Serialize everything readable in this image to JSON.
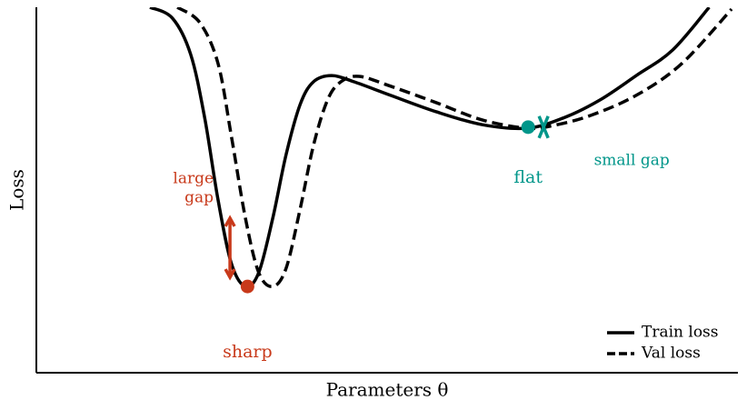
{
  "chart_data": {
    "type": "line",
    "xlabel": "Parameters θ",
    "ylabel": "Loss",
    "xlim": [
      0,
      100
    ],
    "ylim": [
      0,
      100
    ],
    "legend": "lower right",
    "series": [
      {
        "name": "Train loss",
        "color": "#000000",
        "dashed": false,
        "x": [
          16.2,
          19.4,
          22.0,
          24.0,
          25.9,
          27.8,
          29.8,
          31.7,
          33.7,
          35.6,
          37.6,
          39.5,
          42.1,
          45.3,
          50.5,
          57.0,
          63.5,
          69.9,
          75.1,
          80.3,
          85.5,
          90.7,
          95.9
        ],
        "values": [
          100,
          97.0,
          87.1,
          69.7,
          47.3,
          29.9,
          23.6,
          27.4,
          42.3,
          59.7,
          73.4,
          79.6,
          81.3,
          79.6,
          75.9,
          71.4,
          67.9,
          66.9,
          69.7,
          74.6,
          81.3,
          88.3,
          100
        ]
      },
      {
        "name": "Val loss",
        "color": "#000000",
        "dashed": true,
        "x": [
          20.1,
          23.3,
          25.9,
          27.8,
          29.8,
          31.7,
          33.7,
          35.6,
          37.6,
          39.5,
          41.5,
          43.4,
          46.0,
          50.5,
          57.0,
          63.5,
          69.9,
          73.8,
          79.0,
          85.5,
          92.0,
          99.1
        ],
        "values": [
          100,
          95.8,
          84.6,
          64.7,
          42.3,
          27.4,
          23.6,
          28.6,
          44.8,
          62.2,
          74.6,
          79.6,
          81.1,
          78.4,
          73.9,
          69.2,
          66.9,
          67.7,
          70.4,
          75.9,
          84.6,
          99.5
        ]
      }
    ],
    "points": [
      {
        "label": "sharp",
        "color": "#c8391a",
        "x": 30.1,
        "y": 23.6
      },
      {
        "label": "flat",
        "color": "#00968a",
        "x": 70.1,
        "y": 67.2
      }
    ],
    "val_marker": {
      "color": "#00968a",
      "x": 72.3,
      "y": 67.2
    },
    "gap_arrow": {
      "label": [
        "large",
        "gap"
      ],
      "color": "#c8391a",
      "x": 27.6,
      "y": [
        42.3,
        26.1
      ]
    },
    "small_gap_label": {
      "text": "small gap",
      "color": "#00968a"
    }
  }
}
